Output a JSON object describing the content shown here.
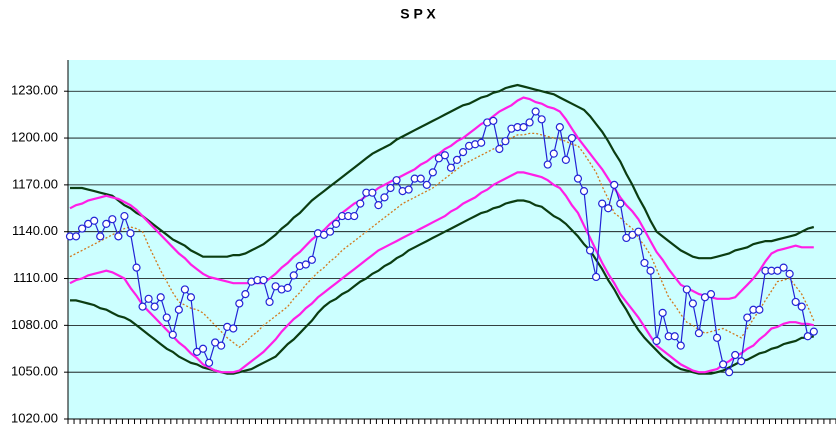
{
  "chart_data": {
    "type": "line",
    "title": "S P X",
    "ylim": [
      1020,
      1250
    ],
    "yticks": [
      {
        "value": 1020,
        "label": "1020.00"
      },
      {
        "value": 1050,
        "label": "1050.00"
      },
      {
        "value": 1080,
        "label": "1080.00"
      },
      {
        "value": 1110,
        "label": "1110.00"
      },
      {
        "value": 1140,
        "label": "1140.00"
      },
      {
        "value": 1170,
        "label": "1170.00"
      },
      {
        "value": 1200,
        "label": "1200.00"
      },
      {
        "value": 1230,
        "label": "1230.00"
      }
    ],
    "grid": true,
    "series": [
      {
        "color": "#0b3d12",
        "style": "solid",
        "values": [
          1168,
          1168,
          1168,
          1167,
          1166,
          1165,
          1164,
          1163,
          1160,
          1157,
          1155,
          1152,
          1150,
          1147,
          1144,
          1141,
          1138,
          1135,
          1133,
          1131,
          1128,
          1126,
          1124,
          1124,
          1124,
          1124,
          1124,
          1125,
          1125,
          1126,
          1128,
          1130,
          1132,
          1135,
          1138,
          1142,
          1145,
          1149,
          1152,
          1156,
          1160,
          1163,
          1166,
          1169,
          1172,
          1175,
          1178,
          1181,
          1184,
          1187,
          1190,
          1192,
          1194,
          1196,
          1199,
          1201,
          1203,
          1205,
          1207,
          1209,
          1211,
          1213,
          1215,
          1217,
          1219,
          1221,
          1222,
          1224,
          1226,
          1227,
          1229,
          1230,
          1232,
          1233,
          1234,
          1233,
          1232,
          1231,
          1230,
          1229,
          1228,
          1226,
          1224,
          1222,
          1220,
          1218,
          1214,
          1209,
          1204,
          1198,
          1191,
          1185,
          1177,
          1170,
          1162,
          1155,
          1147,
          1140,
          1137,
          1134,
          1131,
          1128,
          1126,
          1124,
          1123,
          1123,
          1123,
          1124,
          1125,
          1126,
          1128,
          1129,
          1130,
          1132,
          1133,
          1134,
          1134,
          1135,
          1136,
          1137,
          1138,
          1140,
          1142,
          1143
        ]
      },
      {
        "color": "#0b3d12",
        "style": "solid",
        "values": [
          1096,
          1096,
          1095,
          1094,
          1093,
          1091,
          1090,
          1088,
          1086,
          1085,
          1083,
          1080,
          1077,
          1074,
          1071,
          1068,
          1065,
          1063,
          1060,
          1058,
          1056,
          1055,
          1053,
          1052,
          1051,
          1050,
          1049,
          1049,
          1050,
          1051,
          1052,
          1054,
          1056,
          1058,
          1060,
          1064,
          1068,
          1071,
          1075,
          1079,
          1083,
          1088,
          1092,
          1095,
          1097,
          1100,
          1102,
          1105,
          1108,
          1110,
          1113,
          1115,
          1118,
          1120,
          1123,
          1125,
          1128,
          1130,
          1132,
          1134,
          1136,
          1138,
          1140,
          1142,
          1144,
          1146,
          1148,
          1150,
          1152,
          1153,
          1155,
          1156,
          1158,
          1159,
          1160,
          1160,
          1159,
          1157,
          1156,
          1153,
          1150,
          1148,
          1145,
          1141,
          1137,
          1132,
          1128,
          1122,
          1116,
          1109,
          1103,
          1096,
          1090,
          1083,
          1077,
          1072,
          1068,
          1064,
          1060,
          1057,
          1054,
          1052,
          1051,
          1050,
          1049,
          1049,
          1049,
          1050,
          1051,
          1053,
          1055,
          1057,
          1058,
          1060,
          1062,
          1063,
          1065,
          1066,
          1068,
          1069,
          1070,
          1072,
          1072,
          1073
        ]
      },
      {
        "color": "#ff1ee6",
        "style": "solid",
        "values": [
          1155,
          1157,
          1158,
          1160,
          1161,
          1162,
          1163,
          1162,
          1161,
          1159,
          1157,
          1154,
          1150,
          1146,
          1142,
          1138,
          1134,
          1130,
          1126,
          1123,
          1119,
          1116,
          1113,
          1111,
          1110,
          1109,
          1108,
          1107,
          1107,
          1107,
          1107,
          1107,
          1107,
          1110,
          1113,
          1117,
          1120,
          1124,
          1127,
          1131,
          1135,
          1138,
          1141,
          1145,
          1148,
          1152,
          1155,
          1158,
          1160,
          1163,
          1165,
          1168,
          1170,
          1172,
          1174,
          1176,
          1178,
          1180,
          1183,
          1185,
          1188,
          1190,
          1193,
          1195,
          1198,
          1200,
          1203,
          1206,
          1209,
          1211,
          1214,
          1217,
          1219,
          1221,
          1224,
          1226,
          1225,
          1223,
          1222,
          1220,
          1219,
          1217,
          1212,
          1206,
          1200,
          1195,
          1190,
          1185,
          1180,
          1174,
          1168,
          1162,
          1157,
          1153,
          1148,
          1141,
          1134,
          1127,
          1122,
          1116,
          1111,
          1106,
          1104,
          1102,
          1100,
          1099,
          1098,
          1097,
          1097,
          1097,
          1098,
          1102,
          1106,
          1110,
          1115,
          1121,
          1126,
          1128,
          1129,
          1130,
          1131,
          1130,
          1130,
          1130
        ]
      },
      {
        "color": "#ff1ee6",
        "style": "solid",
        "values": [
          1107,
          1109,
          1110,
          1112,
          1113,
          1114,
          1115,
          1114,
          1112,
          1110,
          1104,
          1099,
          1093,
          1089,
          1085,
          1081,
          1077,
          1073,
          1069,
          1066,
          1062,
          1059,
          1055,
          1053,
          1051,
          1050,
          1050,
          1050,
          1051,
          1054,
          1057,
          1060,
          1063,
          1067,
          1071,
          1076,
          1080,
          1084,
          1087,
          1091,
          1094,
          1098,
          1101,
          1104,
          1107,
          1110,
          1113,
          1116,
          1119,
          1122,
          1125,
          1128,
          1130,
          1132,
          1134,
          1136,
          1138,
          1140,
          1142,
          1144,
          1146,
          1148,
          1150,
          1153,
          1155,
          1158,
          1160,
          1162,
          1165,
          1167,
          1170,
          1172,
          1174,
          1176,
          1178,
          1178,
          1177,
          1176,
          1175,
          1173,
          1170,
          1168,
          1163,
          1157,
          1152,
          1144,
          1136,
          1128,
          1120,
          1113,
          1107,
          1100,
          1095,
          1090,
          1085,
          1079,
          1073,
          1067,
          1064,
          1061,
          1058,
          1055,
          1053,
          1051,
          1050,
          1050,
          1051,
          1052,
          1055,
          1057,
          1060,
          1062,
          1065,
          1067,
          1071,
          1074,
          1078,
          1079,
          1081,
          1082,
          1082,
          1081,
          1081,
          1080
        ]
      },
      {
        "color": "#d2791e",
        "style": "dotted",
        "values": [
          1124,
          1126,
          1128,
          1130,
          1132,
          1134,
          1136,
          1138,
          1140,
          1142,
          1143,
          1142,
          1140,
          1131,
          1123,
          1115,
          1108,
          1101,
          1095,
          1093,
          1091,
          1090,
          1088,
          1084,
          1080,
          1076,
          1072,
          1069,
          1066,
          1069,
          1073,
          1076,
          1080,
          1083,
          1086,
          1089,
          1092,
          1097,
          1101,
          1106,
          1110,
          1114,
          1117,
          1121,
          1124,
          1128,
          1131,
          1134,
          1137,
          1140,
          1143,
          1146,
          1149,
          1152,
          1155,
          1158,
          1160,
          1162,
          1164,
          1166,
          1168,
          1171,
          1174,
          1177,
          1180,
          1183,
          1185,
          1187,
          1189,
          1191,
          1193,
          1195,
          1198,
          1200,
          1202,
          1202,
          1203,
          1203,
          1202,
          1201,
          1200,
          1199,
          1198,
          1196,
          1195,
          1190,
          1184,
          1178,
          1169,
          1161,
          1152,
          1149,
          1145,
          1142,
          1136,
          1131,
          1125,
          1116,
          1107,
          1098,
          1093,
          1087,
          1082,
          1080,
          1077,
          1075,
          1076,
          1077,
          1078,
          1076,
          1074,
          1072,
          1078,
          1084,
          1090,
          1096,
          1102,
          1108,
          1109,
          1110,
          1105,
          1100,
          1092,
          1083
        ]
      },
      {
        "color": "#2323d6",
        "style": "solid",
        "markers": true,
        "values": [
          1137,
          1137,
          1142,
          1145,
          1147,
          1137,
          1145,
          1148,
          1137,
          1150,
          1139,
          1117,
          1092,
          1097,
          1092,
          1098,
          1085,
          1074,
          1090,
          1103,
          1098,
          1063,
          1065,
          1056,
          1069,
          1067,
          1079,
          1078,
          1094,
          1100,
          1108,
          1109,
          1109,
          1095,
          1105,
          1103,
          1104,
          1112,
          1118,
          1119,
          1122,
          1139,
          1138,
          1140,
          1145,
          1150,
          1150,
          1150,
          1158,
          1165,
          1165,
          1157,
          1162,
          1168,
          1173,
          1166,
          1167,
          1174,
          1174,
          1170,
          1178,
          1187,
          1189,
          1181,
          1186,
          1191,
          1195,
          1196,
          1197,
          1210,
          1211,
          1193,
          1198,
          1206,
          1207,
          1207,
          1210,
          1217,
          1212,
          1183,
          1190,
          1207,
          1186,
          1200,
          1174,
          1166,
          1128,
          1111,
          1158,
          1155,
          1170,
          1158,
          1136,
          1138,
          1140,
          1120,
          1115,
          1070,
          1088,
          1073,
          1073,
          1067,
          1103,
          1094,
          1075,
          1098,
          1100,
          1072,
          1055,
          1050,
          1061,
          1057,
          1085,
          1090,
          1090,
          1115,
          1115,
          1115,
          1117,
          1113,
          1095,
          1092,
          1073,
          1076
        ]
      }
    ]
  }
}
